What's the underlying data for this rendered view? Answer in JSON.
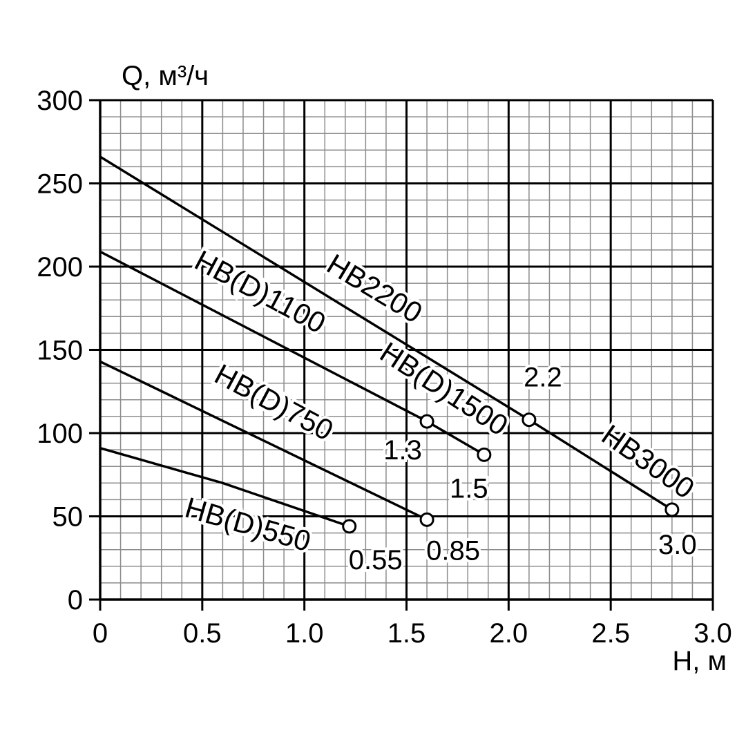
{
  "chart_data": {
    "type": "line",
    "title": "",
    "xlabel": "H, м",
    "ylabel": "Q, м³/ч",
    "xlim": [
      0,
      3.0
    ],
    "ylim": [
      0,
      300
    ],
    "x_ticks": [
      "0",
      "0.5",
      "1.0",
      "1.5",
      "2.0",
      "2.5",
      "3.0"
    ],
    "y_ticks": [
      "0",
      "50",
      "100",
      "150",
      "200",
      "250",
      "300"
    ],
    "grid": true,
    "series": [
      {
        "name": "HB2200",
        "points": [
          [
            0,
            266
          ],
          [
            2.1,
            108
          ]
        ],
        "end_label": "2.2"
      },
      {
        "name": "HB3000",
        "points": [
          [
            2.1,
            108
          ],
          [
            2.8,
            54
          ]
        ],
        "end_label": "3.0"
      },
      {
        "name": "HB(D)1100",
        "points": [
          [
            0,
            209
          ],
          [
            1.6,
            107
          ]
        ],
        "end_label": "1.3"
      },
      {
        "name": "HB(D)1500",
        "points": [
          [
            1.6,
            107
          ],
          [
            1.88,
            87
          ]
        ],
        "end_label": "1.5"
      },
      {
        "name": "HB(D)750",
        "points": [
          [
            0,
            143
          ],
          [
            1.6,
            48
          ]
        ],
        "end_label": "0.85"
      },
      {
        "name": "HB(D)550",
        "points": [
          [
            0,
            91
          ],
          [
            0.6,
            70
          ],
          [
            1.22,
            44
          ]
        ],
        "end_label": "0.55"
      }
    ]
  }
}
